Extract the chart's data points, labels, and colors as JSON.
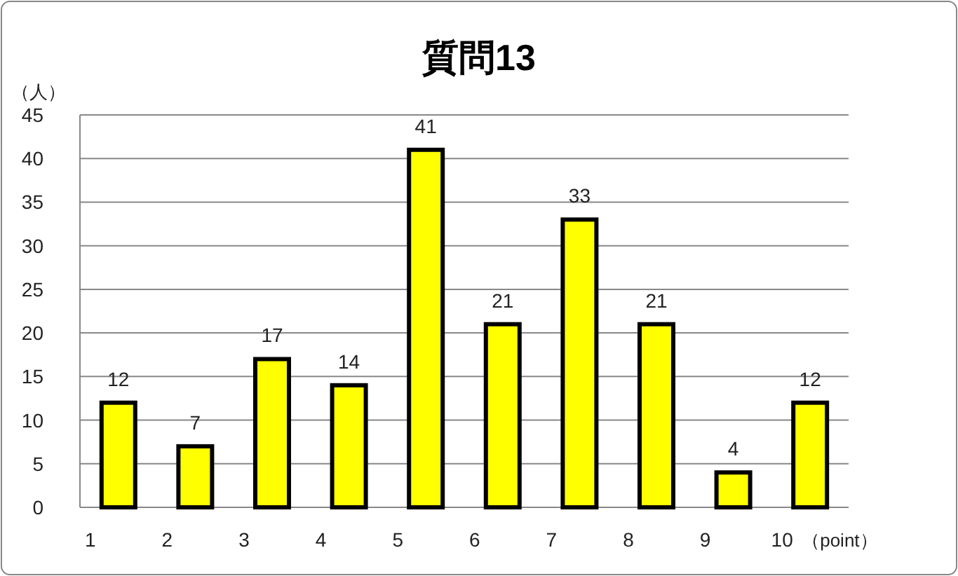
{
  "chart_data": {
    "type": "bar",
    "title": "質問13",
    "ylabel": "（人）",
    "xlabel": "（point）",
    "categories": [
      "1",
      "2",
      "3",
      "4",
      "5",
      "6",
      "7",
      "8",
      "9",
      "10"
    ],
    "values": [
      12,
      7,
      17,
      14,
      41,
      21,
      33,
      21,
      4,
      12
    ],
    "color": "#ffff00",
    "ylim": [
      0,
      45
    ],
    "yticks": [
      0,
      5,
      10,
      15,
      20,
      25,
      30,
      35,
      40,
      45
    ],
    "grid": "y",
    "data_labels": true
  }
}
